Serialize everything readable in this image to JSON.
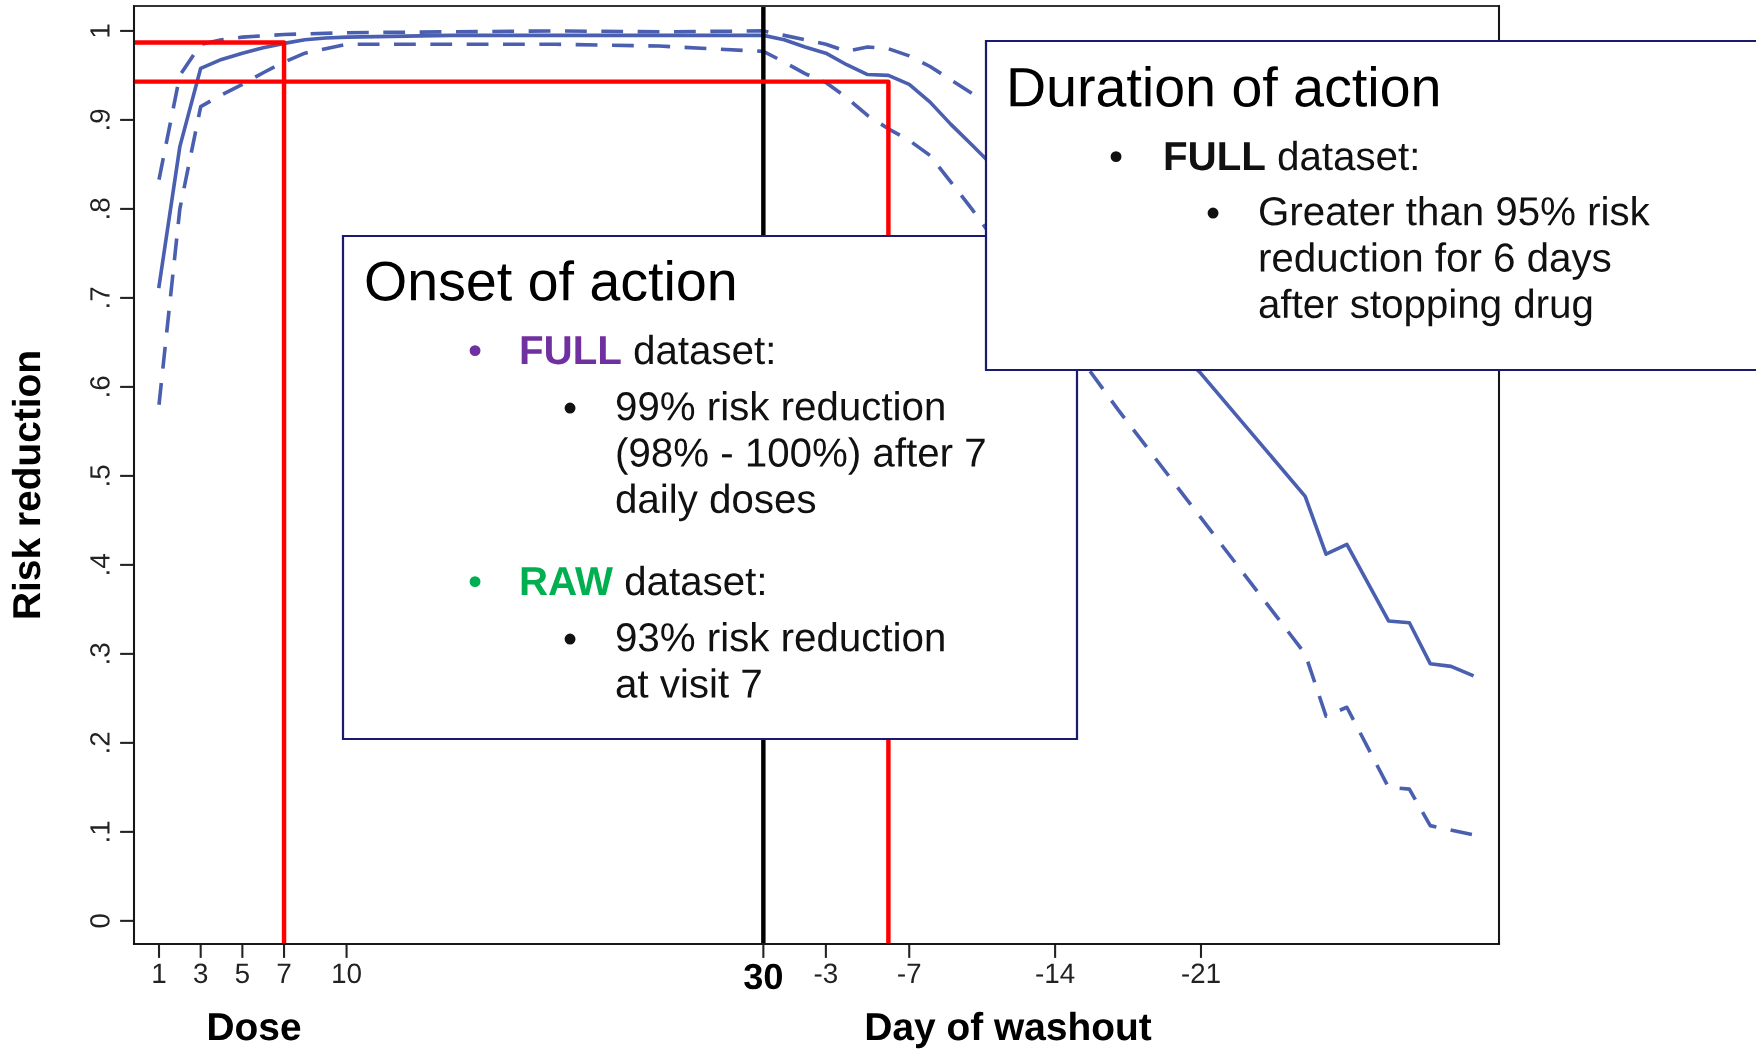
{
  "chart_data": {
    "type": "line",
    "xlabel": "Dose",
    "x2label": "Day of washout",
    "ylabel": "Risk reduction",
    "xlim": [
      -0.2,
      65.3
    ],
    "ylim": [
      -0.026,
      1.028
    ],
    "x2lim": [
      30.2,
      -35.3
    ],
    "xticks": [
      1,
      3,
      5,
      7,
      10,
      30
    ],
    "x2ticks": [
      -3,
      -7,
      -14,
      -21
    ],
    "yticks": [
      0,
      {
        "value": 0.1,
        "label": ".1"
      },
      {
        "value": 0.2,
        "label": ".2"
      },
      {
        "value": 0.3,
        "label": ".3"
      },
      {
        "value": 0.4,
        "label": ".4"
      },
      {
        "value": 0.5,
        "label": ".5"
      },
      {
        "value": 0.6,
        "label": ".6"
      },
      {
        "value": 0.7,
        "label": ".7"
      },
      {
        "value": 0.8,
        "label": ".8"
      },
      {
        "value": 0.9,
        "label": ".9"
      },
      1
    ],
    "grid": false,
    "legend": false,
    "series": [
      {
        "color": "#4a5fb0",
        "line_style": "solid",
        "x": [
          1,
          2,
          3,
          4,
          5,
          6,
          7,
          8,
          9,
          10,
          15,
          20,
          25,
          30,
          31,
          32,
          33,
          34,
          35,
          36,
          37,
          38,
          39,
          40,
          51,
          56,
          57,
          58,
          60,
          61,
          62,
          63,
          64
        ],
        "values": [
          0.713,
          0.87,
          0.958,
          0.968,
          0.975,
          0.981,
          0.986,
          0.99,
          0.992,
          0.993,
          0.995,
          0.995,
          0.995,
          0.995,
          0.99,
          0.982,
          0.975,
          0.962,
          0.951,
          0.95,
          0.94,
          0.92,
          0.895,
          0.872,
          0.615,
          0.477,
          0.412,
          0.423,
          0.337,
          0.335,
          0.289,
          0.286,
          0.276
        ]
      },
      {
        "color": "#4a5fb0",
        "line_style": "dashed",
        "x": [
          1,
          2,
          3,
          4,
          5,
          7,
          10,
          15,
          20,
          25,
          30,
          31,
          32,
          33,
          34,
          35,
          36,
          37,
          38,
          39,
          40
        ],
        "values": [
          0.833,
          0.95,
          0.985,
          0.99,
          0.993,
          0.996,
          0.998,
          0.999,
          1.0,
          0.999,
          1.0,
          0.995,
          0.99,
          0.985,
          0.977,
          0.982,
          0.98,
          0.972,
          0.96,
          0.945,
          0.93
        ]
      },
      {
        "color": "#4a5fb0",
        "line_style": "dashed",
        "x": [
          1,
          2,
          3,
          4,
          5,
          6,
          7,
          8,
          9,
          10,
          15,
          20,
          25,
          30,
          31,
          32,
          33,
          34,
          35,
          36,
          37,
          38,
          39,
          40,
          47,
          56,
          57,
          58,
          60,
          61,
          62,
          64
        ],
        "values": [
          0.58,
          0.8,
          0.915,
          0.928,
          0.94,
          0.953,
          0.965,
          0.975,
          0.98,
          0.985,
          0.985,
          0.985,
          0.983,
          0.977,
          0.965,
          0.952,
          0.942,
          0.925,
          0.905,
          0.89,
          0.877,
          0.86,
          0.83,
          0.8,
          0.575,
          0.3,
          0.23,
          0.24,
          0.15,
          0.148,
          0.107,
          0.097
        ]
      },
      {
        "color": "#ff0000",
        "line_style": "solid",
        "x": [
          -0.2,
          7,
          7
        ],
        "values": [
          0.987,
          0.987,
          -0.026
        ]
      },
      {
        "axis": "x2",
        "color": "#ff0000",
        "line_style": "solid",
        "x": [
          30.2,
          -6,
          -6
        ],
        "values": [
          0.943,
          0.943,
          -0.026
        ]
      }
    ],
    "ref_lines": [
      {
        "axis": "x",
        "value": 30,
        "color": "#000000"
      }
    ],
    "annotations": [
      "Onset of action",
      "• FULL dataset:",
      "• 99% risk reduction\n(98% - 100%) after 7\ndaily doses",
      "• RAW dataset:",
      "• 93% risk reduction\nat visit 7",
      "Duration of action",
      "• FULL dataset:",
      "• Greater than 95% risk\nreduction for 6 days\nafter stopping drug"
    ]
  }
}
